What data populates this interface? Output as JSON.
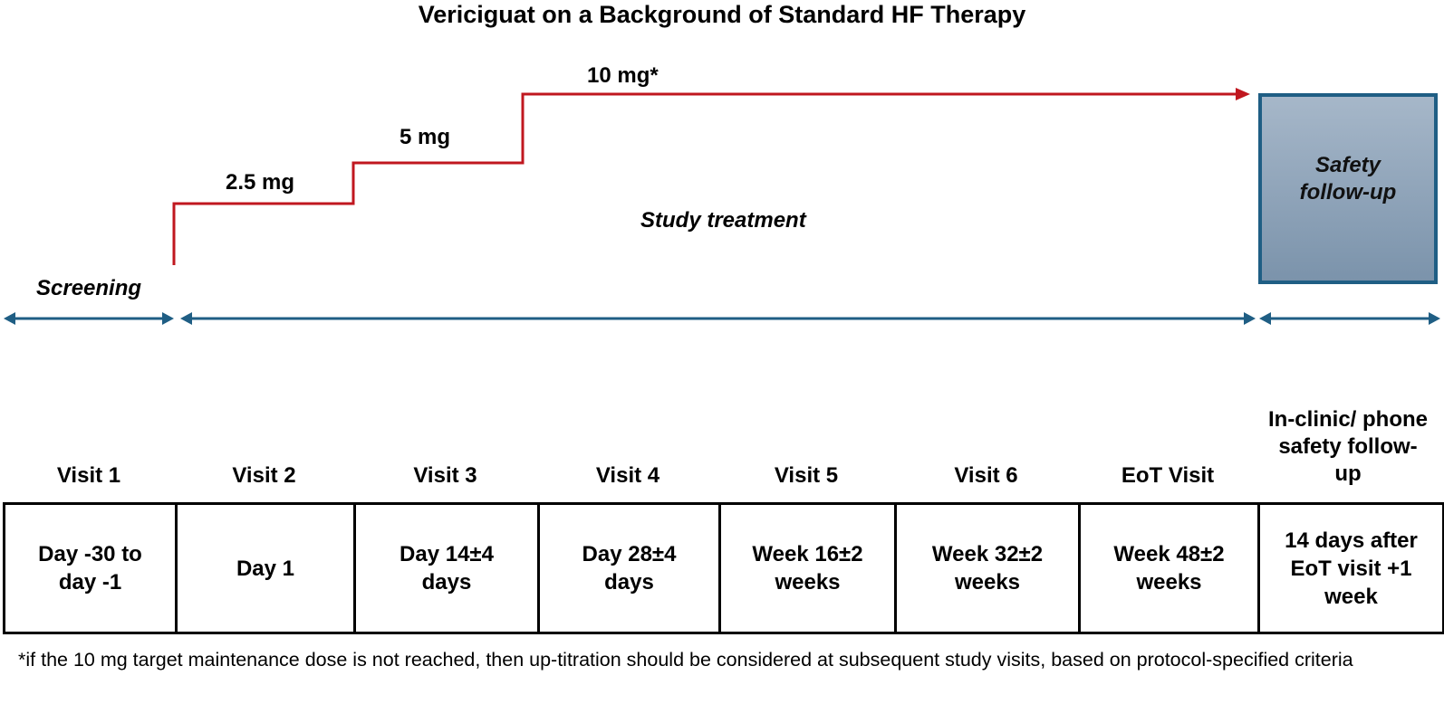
{
  "title": "Vericiguat on a Background of Standard HF Therapy",
  "doses": [
    "2.5 mg",
    "5 mg",
    "10 mg*"
  ],
  "phases": {
    "screening": "Screening",
    "study_treatment": "Study treatment",
    "safety_follow_up": "Safety follow-up"
  },
  "visits": [
    {
      "name": "Visit 1",
      "timing": "Day -30 to day -1"
    },
    {
      "name": "Visit 2",
      "timing": "Day 1"
    },
    {
      "name": "Visit 3",
      "timing": "Day 14±4 days"
    },
    {
      "name": "Visit 4",
      "timing": "Day 28±4 days"
    },
    {
      "name": "Visit 5",
      "timing": "Week 16±2 weeks"
    },
    {
      "name": "Visit 6",
      "timing": "Week 32±2 weeks"
    },
    {
      "name": "EoT Visit",
      "timing": "Week 48±2 weeks"
    },
    {
      "name": "In-clinic/ phone safety follow-up",
      "timing": "14 days after EoT visit +1 week"
    }
  ],
  "footnote": "*if the 10 mg target maintenance dose is not reached, then up-titration should be considered at subsequent study visits, based on protocol-specified criteria",
  "colors": {
    "dose_line": "#c0171f",
    "timeline": "#1f5e84",
    "safety_box_border": "#1f5e84"
  }
}
